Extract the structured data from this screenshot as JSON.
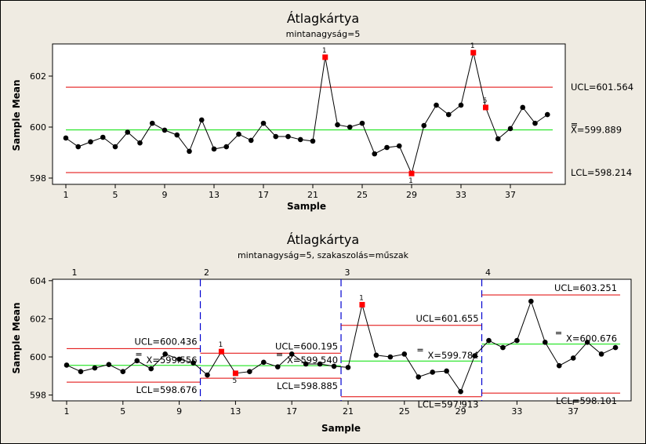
{
  "chart_data": [
    {
      "type": "line",
      "title": "Átlagkártya",
      "subtitle": "mintanagyság=5",
      "xlabel": "Sample",
      "ylabel": "Sample Mean",
      "xlim": [
        0,
        41
      ],
      "ylim": [
        597.8,
        603.1
      ],
      "yticks": [
        598,
        600,
        602
      ],
      "xticks": [
        1,
        5,
        9,
        13,
        17,
        21,
        25,
        29,
        33,
        37
      ],
      "grid": false,
      "x": [
        1,
        2,
        3,
        4,
        5,
        6,
        7,
        8,
        9,
        10,
        11,
        12,
        13,
        14,
        15,
        16,
        17,
        18,
        19,
        20,
        21,
        22,
        23,
        24,
        25,
        26,
        27,
        28,
        29,
        30,
        31,
        32,
        33,
        34,
        35,
        36,
        37,
        38,
        39,
        40
      ],
      "values": [
        599.57,
        599.23,
        599.42,
        599.6,
        599.23,
        599.8,
        599.38,
        600.15,
        599.88,
        599.69,
        599.05,
        600.28,
        599.14,
        599.23,
        599.72,
        599.48,
        600.15,
        599.63,
        599.63,
        599.51,
        599.45,
        602.74,
        600.09,
        600.0,
        600.15,
        598.95,
        599.2,
        599.26,
        598.18,
        600.06,
        600.86,
        600.49,
        600.86,
        602.92,
        600.77,
        599.54,
        599.94,
        600.77,
        600.15,
        600.49
      ],
      "flagged": [
        {
          "sample": 22,
          "test": "1"
        },
        {
          "sample": 29,
          "test": "1"
        },
        {
          "sample": 34,
          "test": "1"
        },
        {
          "sample": 35,
          "test": "5"
        }
      ],
      "limits": {
        "ucl": 601.564,
        "center": 599.889,
        "lcl": 598.214,
        "ucl_label": "UCL=601.564",
        "center_label": "X=599.889",
        "lcl_label": "LCL=598.214"
      }
    },
    {
      "type": "line",
      "title": "Átlagkártya",
      "subtitle": "mintanagyság=5,  szakaszolás=műszak",
      "xlabel": "Sample",
      "ylabel": "Sample Mean",
      "xlim": [
        -0.9,
        40.9
      ],
      "ylim": [
        597.7,
        604.1
      ],
      "yticks": [
        598,
        600,
        602,
        604
      ],
      "xticks": [
        1,
        5,
        9,
        13,
        17,
        21,
        25,
        29,
        33,
        37
      ],
      "grid": false,
      "x": [
        1,
        2,
        3,
        4,
        5,
        6,
        7,
        8,
        9,
        10,
        11,
        12,
        13,
        14,
        15,
        16,
        17,
        18,
        19,
        20,
        21,
        22,
        23,
        24,
        25,
        26,
        27,
        28,
        29,
        30,
        31,
        32,
        33,
        34,
        35,
        36,
        37,
        38,
        39,
        40
      ],
      "values": [
        599.57,
        599.23,
        599.42,
        599.6,
        599.23,
        599.8,
        599.38,
        600.15,
        599.88,
        599.69,
        599.05,
        600.28,
        599.14,
        599.23,
        599.72,
        599.48,
        600.15,
        599.63,
        599.63,
        599.51,
        599.45,
        602.74,
        600.09,
        600.0,
        600.15,
        598.95,
        599.2,
        599.26,
        598.18,
        600.06,
        600.86,
        600.49,
        600.86,
        602.92,
        600.77,
        599.54,
        599.94,
        600.77,
        600.15,
        600.49
      ],
      "flagged": [
        {
          "sample": 12,
          "test": "1"
        },
        {
          "sample": 13,
          "test": "5"
        },
        {
          "sample": 22,
          "test": "1"
        }
      ],
      "stages": [
        {
          "name": "1",
          "start": 1,
          "end": 10,
          "ucl": 600.436,
          "center": 599.556,
          "lcl": 598.676,
          "ucl_label": "UCL=600.436",
          "center_label": "X=599.556",
          "lcl_label": "LCL=598.676"
        },
        {
          "name": "2",
          "start": 11,
          "end": 20,
          "ucl": 600.195,
          "center": 599.54,
          "lcl": 598.885,
          "ucl_label": "UCL=600.195",
          "center_label": "X=599.540",
          "lcl_label": "LCL=598.885"
        },
        {
          "name": "3",
          "start": 21,
          "end": 30,
          "ucl": 601.655,
          "center": 599.784,
          "lcl": 597.913,
          "ucl_label": "UCL=601.655",
          "center_label": "X=599.784",
          "lcl_label": "LCL=597.913"
        },
        {
          "name": "4",
          "start": 31,
          "end": 40,
          "ucl": 603.251,
          "center": 600.676,
          "lcl": 598.101,
          "ucl_label": "UCL=603.251",
          "center_label": "X=600.676",
          "lcl_label": "LCL=598.101"
        }
      ]
    }
  ],
  "colors": {
    "limit": "#e00000",
    "center": "#00e000",
    "point": "#000000",
    "flag": "#ff0000",
    "stage_divider": "#0000d0",
    "plot_bg": "#ffffff"
  }
}
